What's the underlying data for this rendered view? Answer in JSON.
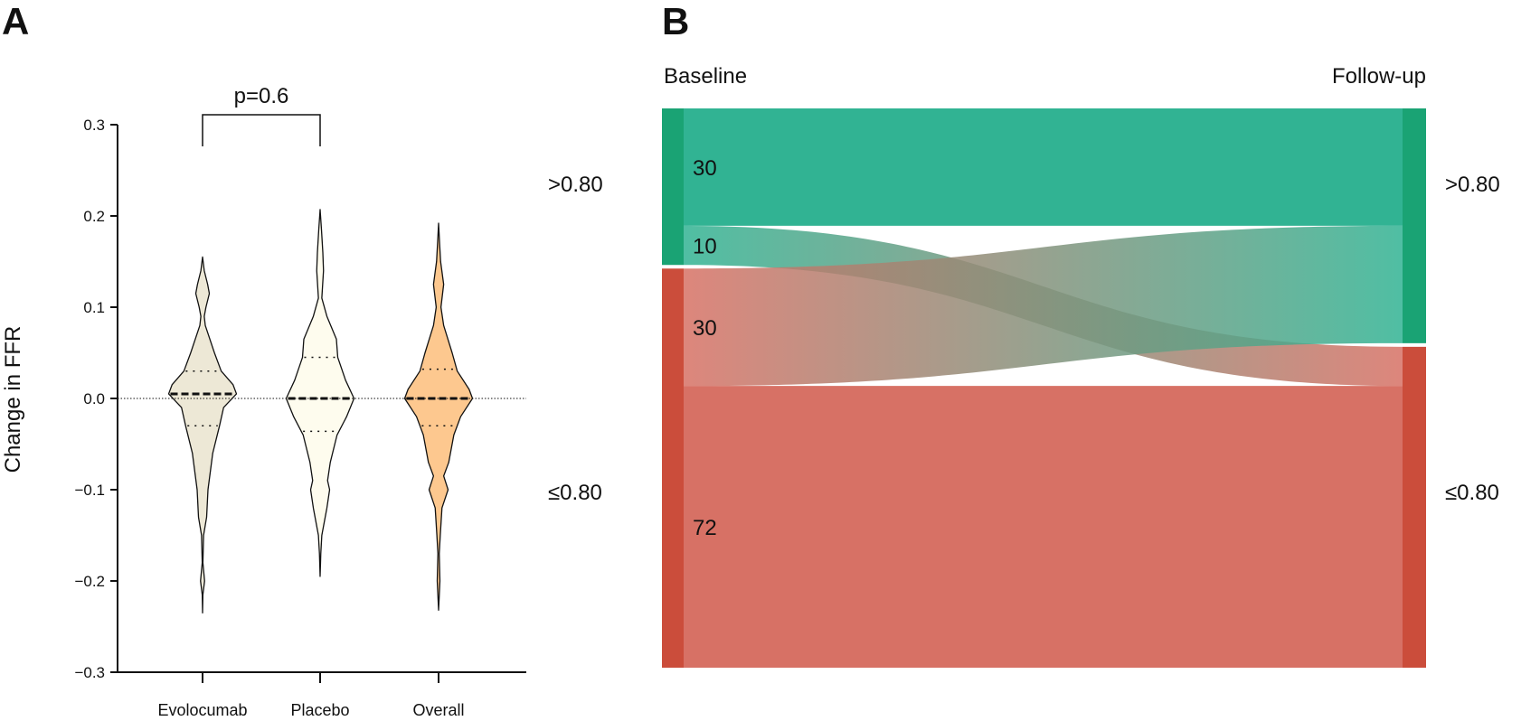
{
  "chart_data": [
    {
      "panel": "A",
      "type": "violin",
      "ylabel": "Change in FFR",
      "ylim": [
        -0.3,
        0.3
      ],
      "yticks": [
        "0.3",
        "0.2",
        "0.1",
        "0.0",
        "−0.1",
        "−0.2",
        "−0.3"
      ],
      "ytick_values": [
        0.3,
        0.2,
        0.1,
        0.0,
        -0.1,
        -0.2,
        -0.3
      ],
      "categories": [
        "Evolocumab",
        "Placebo",
        "Overall"
      ],
      "reference_line": 0.0,
      "annotation": {
        "text": "p=0.6",
        "between": [
          "Evolocumab",
          "Placebo"
        ]
      },
      "series": [
        {
          "category": "Evolocumab",
          "color": "#ede8d6",
          "median": 0.005,
          "q1": -0.03,
          "q3": 0.03,
          "min": -0.235,
          "max": 0.155,
          "density": [
            [
              0.155,
              0
            ],
            [
              0.14,
              0.05
            ],
            [
              0.125,
              0.15
            ],
            [
              0.115,
              0.2
            ],
            [
              0.1,
              0.1
            ],
            [
              0.09,
              0.05
            ],
            [
              0.08,
              0.08
            ],
            [
              0.05,
              0.35
            ],
            [
              0.03,
              0.55
            ],
            [
              0.015,
              0.9
            ],
            [
              0.005,
              1
            ],
            [
              -0.01,
              0.62
            ],
            [
              -0.03,
              0.5
            ],
            [
              -0.06,
              0.3
            ],
            [
              -0.1,
              0.16
            ],
            [
              -0.13,
              0.12
            ],
            [
              -0.15,
              0.03
            ],
            [
              -0.18,
              0.01
            ],
            [
              -0.2,
              0.06
            ],
            [
              -0.215,
              0.01
            ],
            [
              -0.235,
              0
            ]
          ]
        },
        {
          "category": "Placebo",
          "color": "#fefcee",
          "median": 0.0,
          "q1": -0.036,
          "q3": 0.045,
          "min": -0.195,
          "max": 0.207,
          "density": [
            [
              0.207,
              0
            ],
            [
              0.185,
              0.04
            ],
            [
              0.16,
              0.08
            ],
            [
              0.14,
              0.1
            ],
            [
              0.11,
              0.05
            ],
            [
              0.09,
              0.2
            ],
            [
              0.065,
              0.48
            ],
            [
              0.045,
              0.52
            ],
            [
              0.02,
              0.75
            ],
            [
              0,
              1
            ],
            [
              -0.02,
              0.78
            ],
            [
              -0.04,
              0.5
            ],
            [
              -0.07,
              0.3
            ],
            [
              -0.09,
              0.22
            ],
            [
              -0.1,
              0.28
            ],
            [
              -0.12,
              0.2
            ],
            [
              -0.15,
              0.05
            ],
            [
              -0.17,
              0.02
            ],
            [
              -0.195,
              0
            ]
          ]
        },
        {
          "category": "Overall",
          "color": "#fdc88f",
          "median": 0.0,
          "q1": -0.03,
          "q3": 0.032,
          "min": -0.232,
          "max": 0.192,
          "density": [
            [
              0.192,
              0
            ],
            [
              0.17,
              0.03
            ],
            [
              0.15,
              0.06
            ],
            [
              0.125,
              0.15
            ],
            [
              0.1,
              0.07
            ],
            [
              0.08,
              0.15
            ],
            [
              0.05,
              0.4
            ],
            [
              0.03,
              0.55
            ],
            [
              0.01,
              0.9
            ],
            [
              0,
              1
            ],
            [
              -0.02,
              0.65
            ],
            [
              -0.04,
              0.45
            ],
            [
              -0.07,
              0.3
            ],
            [
              -0.085,
              0.15
            ],
            [
              -0.1,
              0.28
            ],
            [
              -0.12,
              0.1
            ],
            [
              -0.15,
              0.05
            ],
            [
              -0.17,
              0.02
            ],
            [
              -0.2,
              0.04
            ],
            [
              -0.232,
              0
            ]
          ]
        }
      ]
    },
    {
      "panel": "B",
      "type": "sankey",
      "left_title": "Baseline",
      "right_title": "Follow-up",
      "nodes": [
        {
          "id": "b_high",
          "side": "left",
          "label": ">0.80",
          "color": "#1aa374"
        },
        {
          "id": "b_low",
          "side": "left",
          "label": "≤0.80",
          "color": "#cb4d3b"
        },
        {
          "id": "f_high",
          "side": "right",
          "label": ">0.80",
          "color": "#1aa374"
        },
        {
          "id": "f_low",
          "side": "right",
          "label": "≤0.80",
          "color": "#cb4d3b"
        }
      ],
      "flows": [
        {
          "from": "b_high",
          "to": "f_high",
          "value": 30,
          "label": "30"
        },
        {
          "from": "b_high",
          "to": "f_low",
          "value": 10,
          "label": "10"
        },
        {
          "from": "b_low",
          "to": "f_high",
          "value": 30,
          "label": "30"
        },
        {
          "from": "b_low",
          "to": "f_low",
          "value": 72,
          "label": "72"
        }
      ],
      "flow_colors": {
        "high": "#31b393",
        "low": "#d77165"
      }
    }
  ],
  "panel_labels": {
    "a": "A",
    "b": "B"
  }
}
